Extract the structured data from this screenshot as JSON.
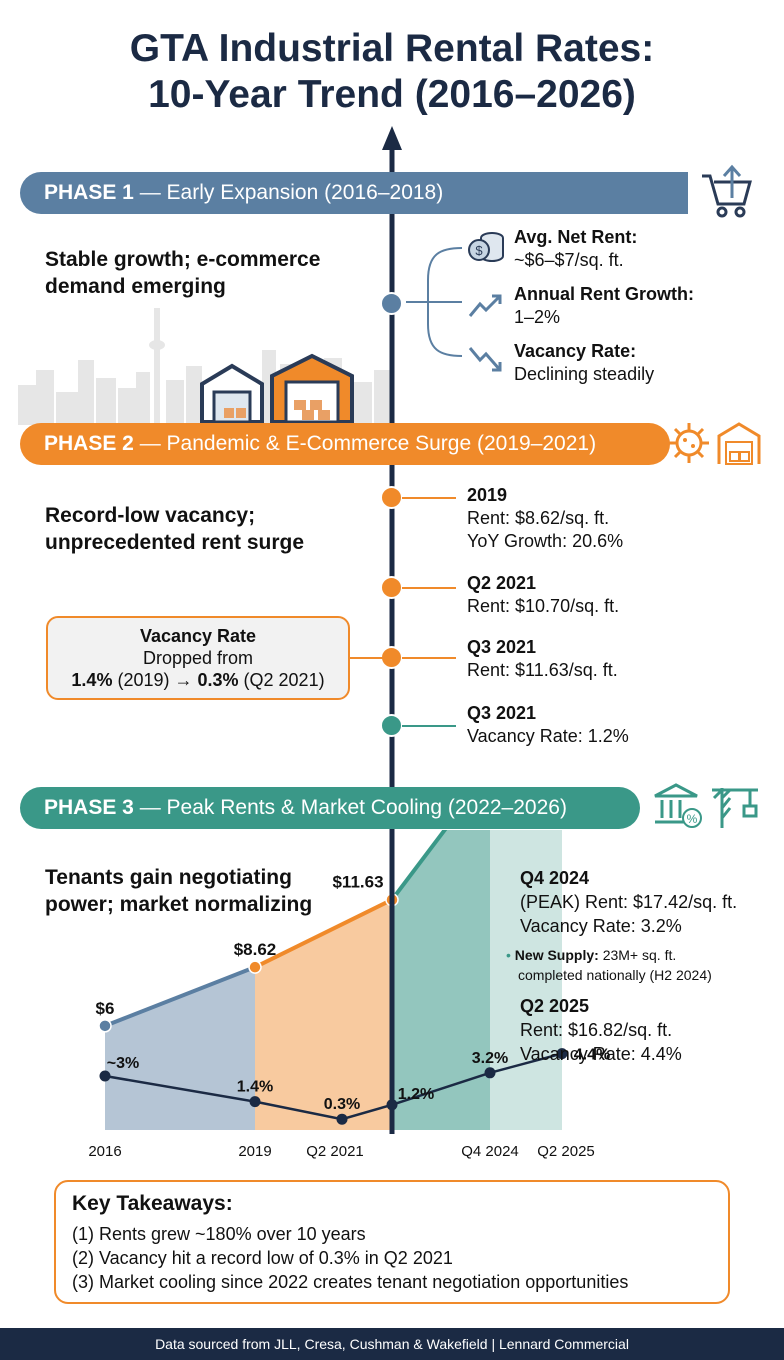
{
  "title_line1": "GTA Industrial Rental Rates:",
  "title_line2": "10-Year Trend (2016–2026)",
  "phase1": {
    "label": "PHASE 1",
    "title": " — Early Expansion (2016–2018)",
    "subtitle": [
      "Stable growth; e-commerce",
      "demand emerging"
    ],
    "items": [
      {
        "heading": "Avg. Net Rent:",
        "text": "~$6–$7/sq. ft."
      },
      {
        "heading": "Annual Rent Growth:",
        "text": "1–2%"
      },
      {
        "heading": "Vacancy Rate:",
        "text": "Declining steadily"
      }
    ]
  },
  "phase2": {
    "label": "PHASE 2",
    "title": " — Pandemic & E-Commerce Surge (2019–2021)",
    "subtitle": [
      "Record-low vacancy;",
      "unprecedented rent surge"
    ],
    "events": [
      {
        "heading": "2019",
        "lines": [
          "Rent: $8.62/sq. ft.",
          "YoY Growth: 20.6%"
        ],
        "color": "#f08a2a"
      },
      {
        "heading": "Q2 2021",
        "lines": [
          "Rent: $10.70/sq. ft."
        ],
        "color": "#f08a2a"
      },
      {
        "heading": "Q3 2021",
        "lines": [
          "Rent: $11.63/sq. ft."
        ],
        "color": "#f08a2a"
      },
      {
        "heading": "Q3 2021",
        "lines": [
          "Vacancy Rate: 1.2%"
        ],
        "color": "#3a9888"
      }
    ],
    "vacancy_box": {
      "heading": "Vacancy Rate",
      "line1": "Dropped from",
      "from_value": "1.4%",
      "from_label": " (2019) → ",
      "to_value": "0.3%",
      "to_label": " (Q2 2021)"
    }
  },
  "phase3": {
    "label": "PHASE 3",
    "title": " — Peak Rents & Market Cooling (2022–2026)",
    "subtitle": [
      "Tenants gain negotiating",
      "power; market normalizing"
    ],
    "q4_2024": {
      "heading": "Q4 2024",
      "line1": "(PEAK) Rent: $17.42/sq. ft.",
      "line2": "Vacancy Rate: 3.2%"
    },
    "new_supply": {
      "label": "New Supply:",
      "line1": " 23M+ sq. ft.",
      "line2": "completed nationally (H2 2024)"
    },
    "q2_2025": {
      "heading": "Q2 2025",
      "line1": "Rent: $16.82/sq. ft.",
      "line2": "Vacancy Rate: 4.4%"
    }
  },
  "chart_data": {
    "type": "line",
    "categories": [
      "2016",
      "2019",
      "Q2 2021",
      "Q3 2021",
      "Q4 2024",
      "Q2 2025"
    ],
    "x_tick_labels": [
      "2016",
      "2019",
      "Q2 2021",
      "Q4 2024",
      "Q2 2025"
    ],
    "series": [
      {
        "values": [
          6,
          8.62,
          null,
          11.63,
          17.42,
          16.82
        ],
        "labels": [
          "$6",
          "$8.62",
          "",
          "$11.63",
          "$17.42",
          "$16.82"
        ]
      },
      {
        "values": [
          3,
          1.4,
          0.3,
          1.2,
          3.2,
          4.4
        ],
        "labels": [
          "~3%",
          "1.4%",
          "0.3%",
          "1.2%",
          "3.2%",
          "4.4%"
        ]
      }
    ],
    "colors": {
      "phase1": "#5b7fa2",
      "phase2": "#f08a2a",
      "phase3": "#3a9888",
      "vacancy": "#1b2a44"
    },
    "grid": false
  },
  "takeaways": {
    "heading": "Key Takeaways:",
    "items": [
      "(1) Rents grew ~180% over 10 years",
      "(2) Vacancy hit a record low of 0.3% in Q2 2021",
      "(3) Market cooling since 2022 creates tenant negotiation opportunities"
    ]
  },
  "footer": "Data sourced from JLL, Cresa, Cushman & Wakefield | Lennard Commercial",
  "icons": [
    "cart-upload-icon",
    "coins-icon",
    "trend-up-icon",
    "trend-down-icon",
    "skyline-icon",
    "warehouse-icon",
    "virus-icon",
    "warehouse-boxes-icon",
    "bank-percent-icon",
    "crane-icon"
  ]
}
